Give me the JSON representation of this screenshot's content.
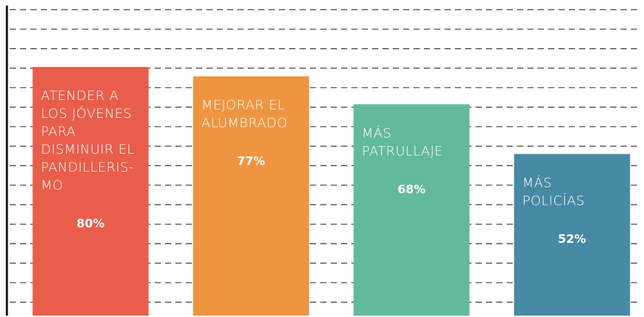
{
  "chart_data": {
    "type": "bar",
    "categories": [
      "ATENDER A\nLOS JÓVENES\nPARA\nDISMINUIR EL\nPANDILLERIS-\nMO",
      "MEJORAR EL\nALUMBRADO",
      "MÁS\nPATRULLAJE",
      "MÁS\nPOLICÍAS"
    ],
    "values": [
      80,
      77,
      68,
      52
    ],
    "value_labels": [
      "80%",
      "77%",
      "68%",
      "52%"
    ],
    "colors": [
      "#e85e4b",
      "#ef9541",
      "#63b99b",
      "#478aa5"
    ],
    "ylim": [
      0,
      100
    ]
  }
}
